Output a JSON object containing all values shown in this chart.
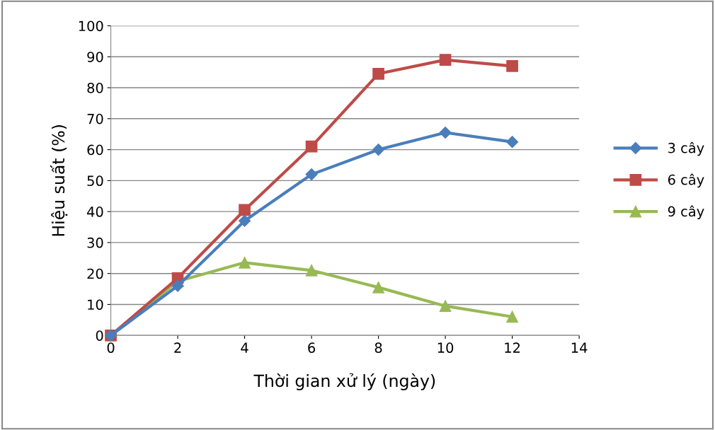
{
  "chart_data": {
    "type": "line",
    "xlabel": "Thời gian xử lý (ngày)",
    "ylabel": "Hiệu suất (%)",
    "x": [
      0,
      2,
      4,
      6,
      8,
      10,
      12
    ],
    "series": [
      {
        "name": "3 cây",
        "color": "#4a7ebb",
        "marker": "diamond",
        "values": [
          0,
          16,
          37,
          52,
          60,
          65.5,
          62.5
        ]
      },
      {
        "name": "6 cây",
        "color": "#be4b48",
        "marker": "square",
        "values": [
          0,
          18.5,
          40.5,
          61,
          84.5,
          89,
          87
        ]
      },
      {
        "name": "9 cây",
        "color": "#98b954",
        "marker": "triangle",
        "values": [
          0,
          17.5,
          23.5,
          21,
          15.5,
          9.5,
          6
        ]
      }
    ],
    "xlim": [
      0,
      14
    ],
    "xticks": [
      0,
      2,
      4,
      6,
      8,
      10,
      12,
      14
    ],
    "ylim": [
      0,
      100
    ],
    "yticks": [
      0,
      10,
      20,
      30,
      40,
      50,
      60,
      70,
      80,
      90,
      100
    ],
    "grid": "y",
    "legend": "right",
    "line_style": "solid"
  }
}
